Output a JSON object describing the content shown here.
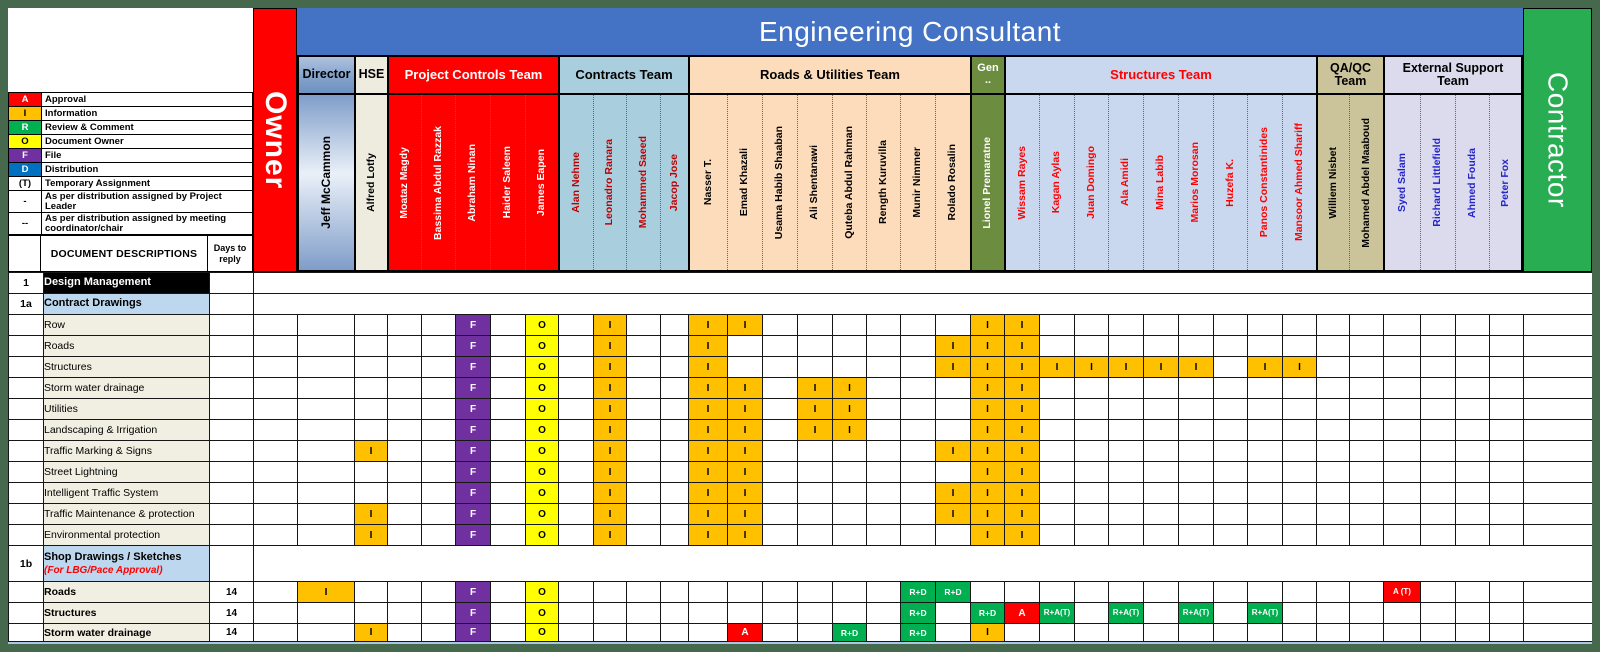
{
  "window": {
    "frame_color": "#46684c"
  },
  "header": {
    "banner": "Engineering Consultant",
    "owner_label": "Owner",
    "contractor_label": "Contractor",
    "owner_bg": "#FF0000",
    "contractor_bg": "#29AD52",
    "banner_bg": "#4472C4",
    "teams": [
      {
        "id": "director",
        "label": "Director",
        "bg": "gradient-blue",
        "fg": "#000000"
      },
      {
        "id": "hse",
        "label": "HSE",
        "bg": "#EDECDF",
        "fg": "#000000"
      },
      {
        "id": "pct",
        "label": "Project Controls Team",
        "bg": "#FF0000",
        "fg": "#FFFFFF"
      },
      {
        "id": "contracts",
        "label": "Contracts Team",
        "bg": "#A9CEDE",
        "fg": "#000000"
      },
      {
        "id": "roads",
        "label": "Roads & Utilities Team",
        "bg": "#FCDCBA",
        "fg": "#000000"
      },
      {
        "id": "gen",
        "label": "Gen\n..",
        "bg": "#6C8C40",
        "fg": "#FFFFFF"
      },
      {
        "id": "structures",
        "label": "Structures Team",
        "bg": "#C9D8EE",
        "fg": "#FF0000"
      },
      {
        "id": "qaqc",
        "label": "QA/QC\nTeam",
        "bg": "#CBC39A",
        "fg": "#000000"
      },
      {
        "id": "external",
        "label": "External Support\nTeam",
        "bg": "#DBDBED",
        "fg": "#000000"
      }
    ],
    "name_colors": {
      "director": "#000000",
      "hse": "#000000",
      "pct": "#FFFFFF",
      "contracts": "#C00000",
      "roads": "#000000",
      "gen": "#FFFFFF",
      "structures": "#FF0000",
      "qaqc": "#000000",
      "external": "#2424CC"
    }
  },
  "people": [
    {
      "key": "jeff",
      "name": "Jeff McCammon",
      "team": "director"
    },
    {
      "key": "alfred",
      "name": "Alfred Lotfy",
      "team": "hse"
    },
    {
      "key": "moataz",
      "name": "Moataz Magdy",
      "team": "pct"
    },
    {
      "key": "bassima",
      "name": "Bassima Abdul Razzak",
      "team": "pct"
    },
    {
      "key": "abraham",
      "name": "Abraham Ninan",
      "team": "pct"
    },
    {
      "key": "haider",
      "name": "Haider Saleem",
      "team": "pct"
    },
    {
      "key": "james",
      "name": "James Eapen",
      "team": "pct"
    },
    {
      "key": "alan",
      "name": "Alan Nehme",
      "team": "contracts"
    },
    {
      "key": "leonadro",
      "name": "Leonadro Ranara",
      "team": "contracts"
    },
    {
      "key": "msaeed",
      "name": "Mohammed Saeed",
      "team": "contracts"
    },
    {
      "key": "jacop",
      "name": "Jacop Jose",
      "team": "contracts"
    },
    {
      "key": "nasser",
      "name": "Nasser T.",
      "team": "roads"
    },
    {
      "key": "emad",
      "name": "Emad Khazali",
      "team": "roads"
    },
    {
      "key": "usama",
      "name": "Usama Habib Shaaban",
      "team": "roads"
    },
    {
      "key": "ali",
      "name": "Ali Shentanawi",
      "team": "roads"
    },
    {
      "key": "quteba",
      "name": "Quteba Abdul Rahman",
      "team": "roads"
    },
    {
      "key": "rength",
      "name": "Rength Kuruvilla",
      "team": "roads"
    },
    {
      "key": "munir",
      "name": "Munir Nimmer",
      "team": "roads"
    },
    {
      "key": "rolado",
      "name": "Rolado Rosalin",
      "team": "roads"
    },
    {
      "key": "lionel",
      "name": "Lionel Premaratne",
      "team": "gen"
    },
    {
      "key": "wissam",
      "name": "Wissam Rayes",
      "team": "structures"
    },
    {
      "key": "kagan",
      "name": "Kagan Aylas",
      "team": "structures"
    },
    {
      "key": "juan",
      "name": "Juan Domingo",
      "team": "structures"
    },
    {
      "key": "ala",
      "name": "Ala Amidi",
      "team": "structures"
    },
    {
      "key": "mina",
      "name": "Mina Labib",
      "team": "structures"
    },
    {
      "key": "marios",
      "name": "Marios Morosan",
      "team": "structures"
    },
    {
      "key": "huzefa",
      "name": "Huzefa K.",
      "team": "structures"
    },
    {
      "key": "panos",
      "name": "Panos Constantinides",
      "team": "structures"
    },
    {
      "key": "mansoor",
      "name": "Mansoor Ahmed Shariff",
      "team": "structures"
    },
    {
      "key": "william",
      "name": "Williem Nisbet",
      "team": "qaqc"
    },
    {
      "key": "mabdel",
      "name": "Mohamed Abdel Maaboud",
      "team": "qaqc"
    },
    {
      "key": "syed",
      "name": "Syed Salam",
      "team": "external"
    },
    {
      "key": "richard",
      "name": "Richard Littlefield",
      "team": "external"
    },
    {
      "key": "afouda",
      "name": "Ahmed Fouda",
      "team": "external"
    },
    {
      "key": "peter",
      "name": "Peter Fox",
      "team": "external"
    }
  ],
  "legend": {
    "items": [
      {
        "symbol": "A",
        "label": "Approval",
        "bg": "#FF0000",
        "fg": "#FFFFFF",
        "tall": false
      },
      {
        "symbol": "I",
        "label": "Information",
        "bg": "#FFC000",
        "fg": "#000000",
        "tall": false
      },
      {
        "symbol": "R",
        "label": "Review & Comment",
        "bg": "#00B050",
        "fg": "#FFFFFF",
        "tall": false
      },
      {
        "symbol": "O",
        "label": "Document Owner",
        "bg": "#FFFF00",
        "fg": "#000000",
        "tall": false
      },
      {
        "symbol": "F",
        "label": "File",
        "bg": "#7030A0",
        "fg": "#FFFFFF",
        "tall": false
      },
      {
        "symbol": "D",
        "label": "Distribution",
        "bg": "#0070C0",
        "fg": "#FFFFFF",
        "tall": false
      },
      {
        "symbol": "(T)",
        "label": "Temporary Assignment",
        "bg": "#FFFFFF",
        "fg": "#000000",
        "tall": false
      },
      {
        "symbol": "-",
        "label": "As per distribution assigned by Project Leader",
        "bg": "#FFFFFF",
        "fg": "#000000",
        "tall": true
      },
      {
        "symbol": "--",
        "label": "As per distribution assigned by meeting coordinator/chair",
        "bg": "#FFFFFF",
        "fg": "#000000",
        "tall": true
      }
    ]
  },
  "doc_header": {
    "descriptions": "DOCUMENT DESCRIPTIONS",
    "days": "Days to\nreply"
  },
  "codes": {
    "F": {
      "bg": "#7030A0",
      "fg": "#FFFFFF"
    },
    "O": {
      "bg": "#FFFF00",
      "fg": "#000000"
    },
    "I": {
      "bg": "#FFC000",
      "fg": "#000000"
    },
    "A": {
      "bg": "#FF0000",
      "fg": "#FFFFFF"
    },
    "R+D": {
      "bg": "#00B050",
      "fg": "#FFFFFF"
    },
    "R+A(T)": {
      "bg": "#00B050",
      "fg": "#FFFFFF"
    },
    "A (T)": {
      "bg": "#FF0000",
      "fg": "#FFFFFF"
    }
  },
  "rows": [
    {
      "type": "section-black",
      "num": "1",
      "label": "Design Management"
    },
    {
      "type": "section-blue",
      "num": "1a",
      "label": "Contract Drawings"
    },
    {
      "type": "data",
      "label": "Row",
      "days": "",
      "cells": {
        "abraham": "F",
        "james": "O",
        "leonadro": "I",
        "nasser": "I",
        "emad": "I",
        "lionel": "I",
        "wissam": "I"
      }
    },
    {
      "type": "data",
      "label": "Roads",
      "days": "",
      "cells": {
        "abraham": "F",
        "james": "O",
        "leonadro": "I",
        "nasser": "I",
        "rolado": "I",
        "lionel": "I",
        "wissam": "I"
      }
    },
    {
      "type": "data",
      "label": "Structures",
      "days": "",
      "cells": {
        "abraham": "F",
        "james": "O",
        "leonadro": "I",
        "nasser": "I",
        "rolado": "I",
        "lionel": "I",
        "wissam": "I",
        "kagan": "I",
        "juan": "I",
        "ala": "I",
        "mina": "I",
        "marios": "I",
        "panos": "I",
        "mansoor": "I"
      }
    },
    {
      "type": "data",
      "label": "Storm water drainage",
      "days": "",
      "cells": {
        "abraham": "F",
        "james": "O",
        "leonadro": "I",
        "nasser": "I",
        "emad": "I",
        "ali": "I",
        "quteba": "I",
        "lionel": "I",
        "wissam": "I"
      }
    },
    {
      "type": "data",
      "label": "Utilities",
      "days": "",
      "cells": {
        "abraham": "F",
        "james": "O",
        "leonadro": "I",
        "nasser": "I",
        "emad": "I",
        "ali": "I",
        "quteba": "I",
        "lionel": "I",
        "wissam": "I"
      }
    },
    {
      "type": "data",
      "label": "Landscaping & Irrigation",
      "days": "",
      "cells": {
        "abraham": "F",
        "james": "O",
        "leonadro": "I",
        "nasser": "I",
        "emad": "I",
        "ali": "I",
        "quteba": "I",
        "lionel": "I",
        "wissam": "I"
      }
    },
    {
      "type": "data",
      "label": "Traffic Marking & Signs",
      "days": "",
      "cells": {
        "alfred": "I",
        "abraham": "F",
        "james": "O",
        "leonadro": "I",
        "nasser": "I",
        "emad": "I",
        "rolado": "I",
        "lionel": "I",
        "wissam": "I"
      }
    },
    {
      "type": "data",
      "label": "Street Lightning",
      "days": "",
      "cells": {
        "abraham": "F",
        "james": "O",
        "leonadro": "I",
        "nasser": "I",
        "emad": "I",
        "lionel": "I",
        "wissam": "I"
      }
    },
    {
      "type": "data",
      "label": "Intelligent Traffic System",
      "days": "",
      "cells": {
        "abraham": "F",
        "james": "O",
        "leonadro": "I",
        "nasser": "I",
        "emad": "I",
        "rolado": "I",
        "lionel": "I",
        "wissam": "I"
      }
    },
    {
      "type": "data",
      "label": "Traffic Maintenance & protection",
      "days": "",
      "cells": {
        "alfred": "I",
        "abraham": "F",
        "james": "O",
        "leonadro": "I",
        "nasser": "I",
        "emad": "I",
        "rolado": "I",
        "lionel": "I",
        "wissam": "I"
      }
    },
    {
      "type": "data",
      "label": "Environmental protection",
      "days": "",
      "cells": {
        "alfred": "I",
        "abraham": "F",
        "james": "O",
        "leonadro": "I",
        "nasser": "I",
        "emad": "I",
        "lionel": "I",
        "wissam": "I"
      }
    },
    {
      "type": "section-blue",
      "num": "1b",
      "label": "Shop Drawings / Sketches",
      "sublabel": "(For LBG/Pace Approval)",
      "tall": true
    },
    {
      "type": "data",
      "label": "Roads",
      "bold": true,
      "days": "14",
      "cells": {
        "jeff": "I",
        "abraham": "F",
        "james": "O",
        "munir": "R+D",
        "rolado": "R+D",
        "syed": "A (T)"
      }
    },
    {
      "type": "data",
      "label": "Structures",
      "bold": true,
      "days": "14",
      "cells": {
        "abraham": "F",
        "james": "O",
        "munir": "R+D",
        "lionel": "R+D",
        "wissam": "A",
        "kagan": "R+A(T)",
        "ala": "R+A(T)",
        "marios": "R+A(T)",
        "panos": "R+A(T)"
      }
    },
    {
      "type": "data",
      "label": "Storm water drainage",
      "bold": true,
      "days": "14",
      "last": true,
      "cells": {
        "alfred": "I",
        "abraham": "F",
        "james": "O",
        "emad": "A",
        "quteba": "R+D",
        "munir": "R+D",
        "lionel": "I"
      }
    }
  ]
}
